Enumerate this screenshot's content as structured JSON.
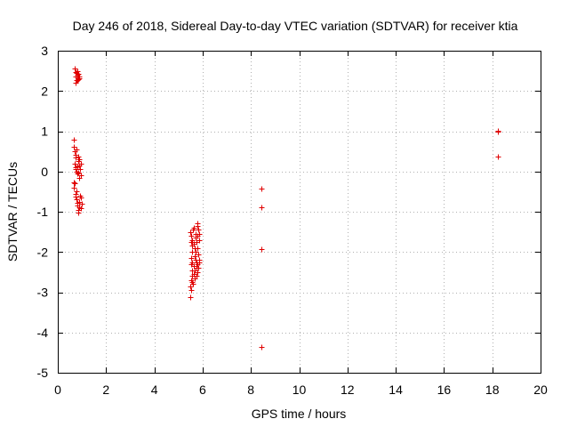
{
  "chart_data": {
    "type": "scatter",
    "title": "Day 246 of 2018, Sidereal Day-to-day VTEC variation (SDTVAR) for receiver ktia",
    "xlabel": "GPS time / hours",
    "ylabel": "SDTVAR / TECUs",
    "xlim": [
      0,
      20
    ],
    "ylim": [
      -5,
      3
    ],
    "xticks": [
      0,
      2,
      4,
      6,
      8,
      10,
      12,
      14,
      16,
      18,
      20
    ],
    "yticks": [
      -5,
      -4,
      -3,
      -2,
      -1,
      0,
      1,
      2,
      3
    ],
    "grid": true,
    "marker": "+",
    "color": "#e00000",
    "series": [
      {
        "name": "SDTVAR",
        "points": [
          [
            0.7,
            2.55
          ],
          [
            0.72,
            2.2
          ],
          [
            0.74,
            2.35
          ],
          [
            0.76,
            2.45
          ],
          [
            0.78,
            2.28
          ],
          [
            0.8,
            2.5
          ],
          [
            0.82,
            2.4
          ],
          [
            0.84,
            2.3
          ],
          [
            0.86,
            2.42
          ],
          [
            0.88,
            2.36
          ],
          [
            0.9,
            2.32
          ],
          [
            0.8,
            2.26
          ],
          [
            0.75,
            2.48
          ],
          [
            0.66,
            0.8
          ],
          [
            0.68,
            0.62
          ],
          [
            0.7,
            0.5
          ],
          [
            0.72,
            0.35
          ],
          [
            0.74,
            0.42
          ],
          [
            0.76,
            0.55
          ],
          [
            0.7,
            0.2
          ],
          [
            0.72,
            0.05
          ],
          [
            0.75,
            0.1
          ],
          [
            0.78,
            0.0
          ],
          [
            0.8,
            -0.05
          ],
          [
            0.82,
            0.12
          ],
          [
            0.84,
            0.25
          ],
          [
            0.86,
            0.38
          ],
          [
            0.88,
            0.15
          ],
          [
            0.9,
            0.3
          ],
          [
            0.92,
            0.05
          ],
          [
            0.94,
            -0.1
          ],
          [
            0.96,
            0.2
          ],
          [
            0.88,
            -0.15
          ],
          [
            0.84,
            -0.02
          ],
          [
            0.66,
            -0.28
          ],
          [
            0.68,
            -0.4
          ],
          [
            0.7,
            -0.3
          ],
          [
            0.72,
            -0.55
          ],
          [
            0.74,
            -0.62
          ],
          [
            0.76,
            -0.5
          ],
          [
            0.78,
            -0.7
          ],
          [
            0.8,
            -0.78
          ],
          [
            0.82,
            -0.85
          ],
          [
            0.84,
            -0.95
          ],
          [
            0.86,
            -1.02
          ],
          [
            0.88,
            -0.88
          ],
          [
            0.9,
            -0.75
          ],
          [
            0.92,
            -0.6
          ],
          [
            0.94,
            -0.92
          ],
          [
            0.96,
            -0.65
          ],
          [
            0.98,
            -0.8
          ],
          [
            5.48,
            -3.12
          ],
          [
            5.5,
            -2.85
          ],
          [
            5.52,
            -2.95
          ],
          [
            5.54,
            -2.7
          ],
          [
            5.56,
            -2.75
          ],
          [
            5.58,
            -2.6
          ],
          [
            5.55,
            -2.45
          ],
          [
            5.52,
            -2.3
          ],
          [
            5.54,
            -2.15
          ],
          [
            5.56,
            -2.0
          ],
          [
            5.58,
            -1.85
          ],
          [
            5.52,
            -1.75
          ],
          [
            5.54,
            -1.6
          ],
          [
            5.5,
            -1.5
          ],
          [
            5.56,
            -1.7
          ],
          [
            5.58,
            -2.25
          ],
          [
            5.6,
            -1.45
          ],
          [
            5.6,
            -2.8
          ],
          [
            5.62,
            -2.55
          ],
          [
            5.64,
            -2.35
          ],
          [
            5.66,
            -2.1
          ],
          [
            5.68,
            -1.9
          ],
          [
            5.7,
            -1.65
          ],
          [
            5.72,
            -1.55
          ],
          [
            5.66,
            -2.65
          ],
          [
            5.68,
            -2.45
          ],
          [
            5.7,
            -2.2
          ],
          [
            5.72,
            -2.0
          ],
          [
            5.64,
            -1.8
          ],
          [
            5.62,
            -1.4
          ],
          [
            5.74,
            -1.75
          ],
          [
            5.76,
            -2.6
          ],
          [
            5.76,
            -2.4
          ],
          [
            5.74,
            -2.25
          ],
          [
            5.78,
            -1.35
          ],
          [
            5.8,
            -1.28
          ],
          [
            5.82,
            -1.45
          ],
          [
            5.8,
            -1.6
          ],
          [
            5.78,
            -1.9
          ],
          [
            5.82,
            -2.05
          ],
          [
            5.84,
            -2.2
          ],
          [
            5.8,
            -2.3
          ],
          [
            5.78,
            -2.5
          ],
          [
            5.84,
            -1.7
          ],
          [
            5.86,
            -1.55
          ],
          [
            5.82,
            -2.4
          ],
          [
            5.86,
            -2.25
          ],
          [
            8.45,
            -0.42
          ],
          [
            8.45,
            -0.88
          ],
          [
            8.45,
            -1.92
          ],
          [
            8.45,
            -4.35
          ],
          [
            18.22,
            1.02
          ],
          [
            18.25,
            0.98
          ],
          [
            18.25,
            0.38
          ]
        ]
      }
    ]
  }
}
